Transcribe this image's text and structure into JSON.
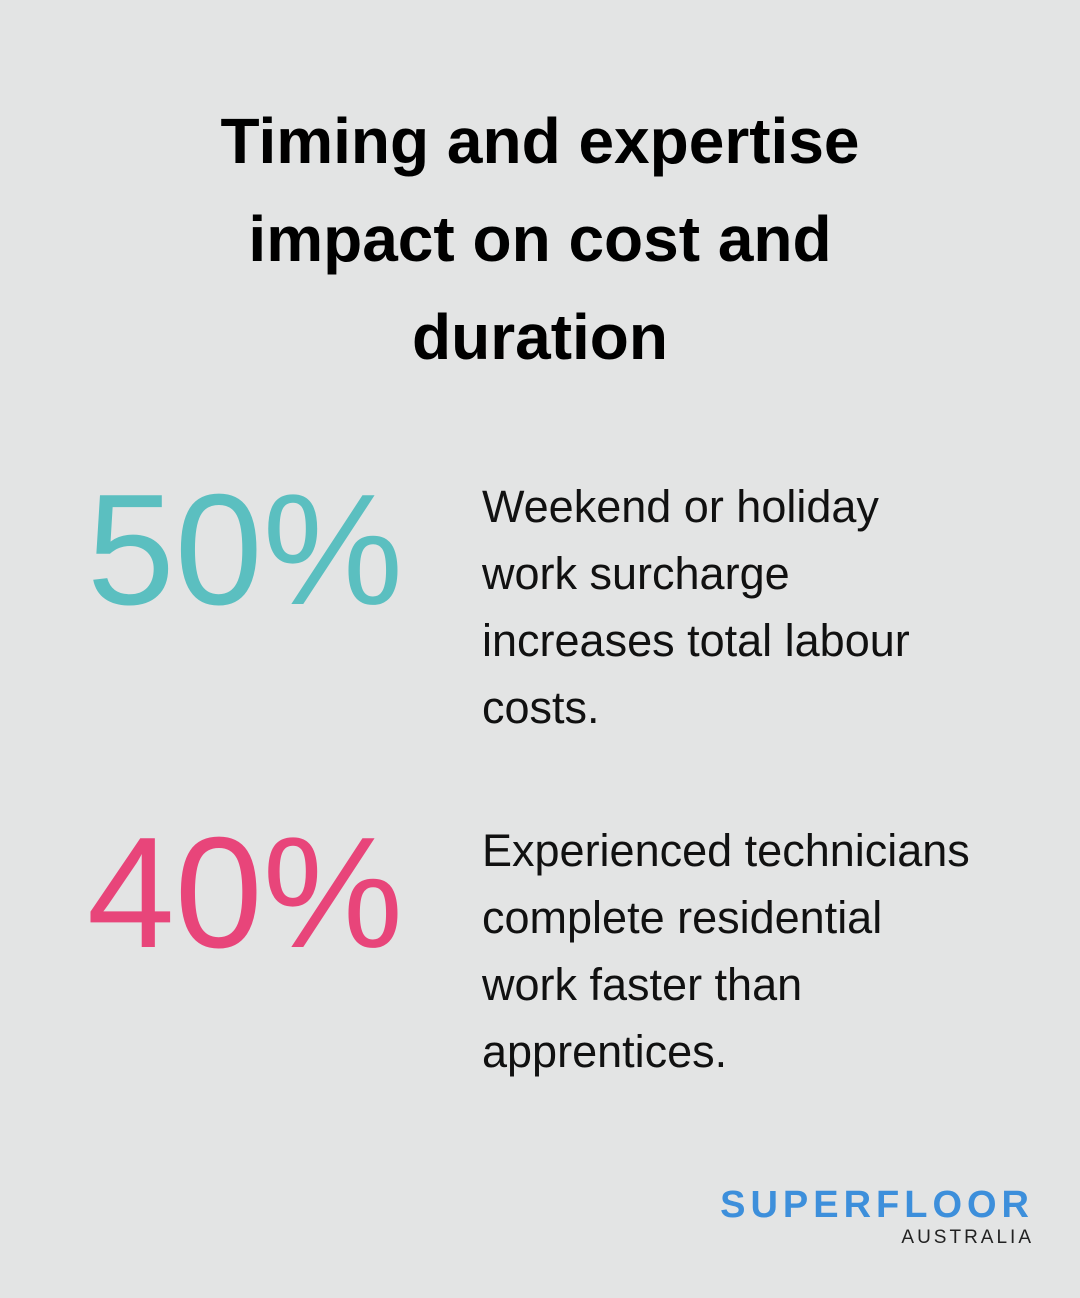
{
  "header": {
    "title": "Timing and expertise impact on cost and duration"
  },
  "stats": [
    {
      "value": "50%",
      "text": "Weekend or holiday work surcharge increases total labour costs."
    },
    {
      "value": "40%",
      "text": "Experienced technicians complete residential work faster than apprentices."
    }
  ],
  "logo": {
    "name": "SUPERFLOOR",
    "region": "AUSTRALIA"
  }
}
